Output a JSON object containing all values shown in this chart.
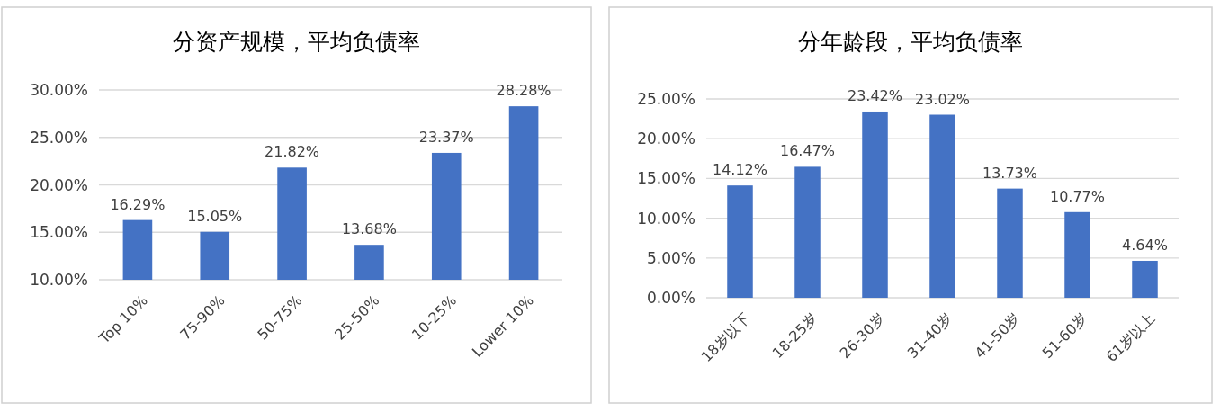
{
  "chart_data": [
    {
      "type": "bar",
      "title": "分资产规模，平均负债率",
      "categories": [
        "Top 10%",
        "75-90%",
        "50-75%",
        "25-50%",
        "10-25%",
        "Lower 10%"
      ],
      "values": [
        16.29,
        15.05,
        21.82,
        13.68,
        23.37,
        28.28
      ],
      "value_labels": [
        "16.29%",
        "15.05%",
        "21.82%",
        "13.68%",
        "23.37%",
        "28.28%"
      ],
      "color": "#4472c4",
      "ylim": [
        10,
        30
      ],
      "yticks": [
        {
          "value": 10,
          "label": "10.00%"
        },
        {
          "value": 15,
          "label": "15.00%"
        },
        {
          "value": 20,
          "label": "20.00%"
        },
        {
          "value": 25,
          "label": "25.00%"
        },
        {
          "value": 30,
          "label": "30.00%"
        }
      ],
      "grid": "y"
    },
    {
      "type": "bar",
      "title": "分年龄段，平均负债率",
      "categories": [
        "18岁以下",
        "18-25岁",
        "26-30岁",
        "31-40岁",
        "41-50岁",
        "51-60岁",
        "61岁以上"
      ],
      "values": [
        14.12,
        16.47,
        23.42,
        23.02,
        13.73,
        10.77,
        4.64
      ],
      "value_labels": [
        "14.12%",
        "16.47%",
        "23.42%",
        "23.02%",
        "13.73%",
        "10.77%",
        "4.64%"
      ],
      "color": "#4472c4",
      "ylim": [
        0,
        25
      ],
      "yticks": [
        {
          "value": 0,
          "label": "0.00%"
        },
        {
          "value": 5,
          "label": "5.00%"
        },
        {
          "value": 10,
          "label": "10.00%"
        },
        {
          "value": 15,
          "label": "15.00%"
        },
        {
          "value": 20,
          "label": "20.00%"
        },
        {
          "value": 25,
          "label": "25.00%"
        }
      ],
      "grid": "y"
    }
  ]
}
